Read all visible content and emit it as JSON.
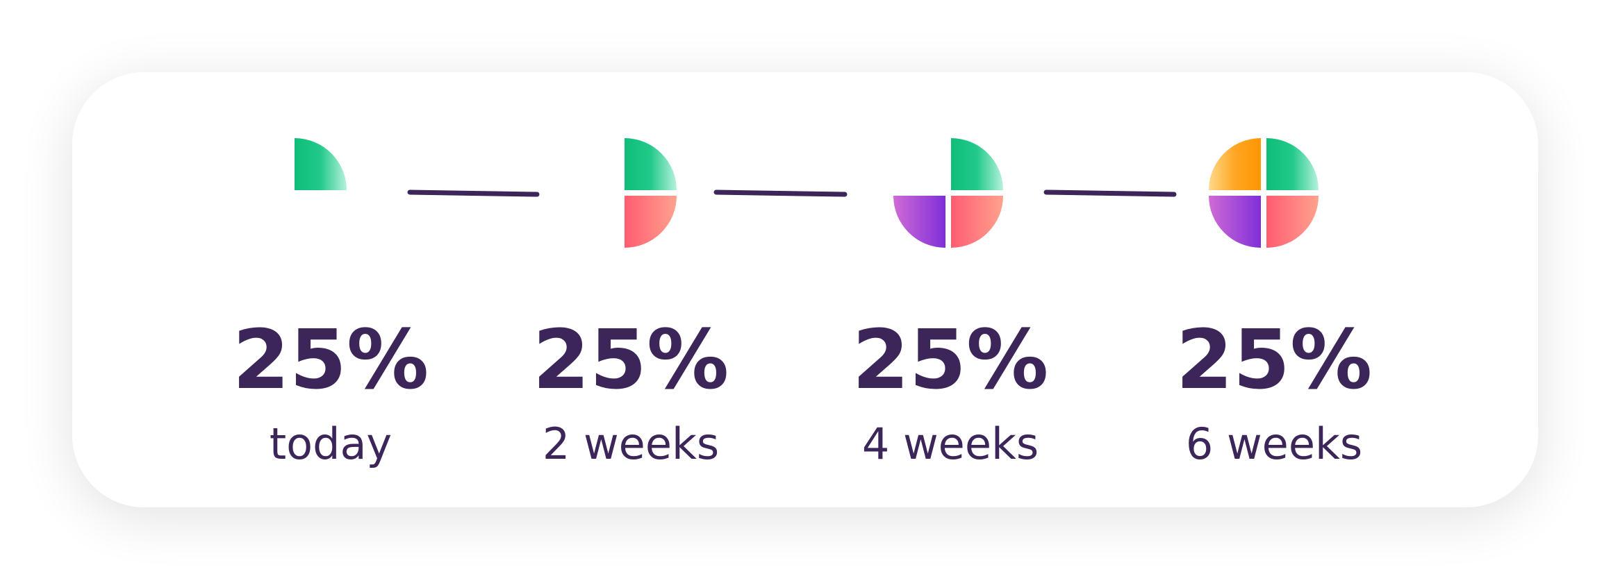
{
  "steps": [
    {
      "value": "25%",
      "label": "today"
    },
    {
      "value": "25%",
      "label": "2 weeks"
    },
    {
      "value": "25%",
      "label": "4 weeks"
    },
    {
      "value": "25%",
      "label": "6 weeks"
    }
  ]
}
